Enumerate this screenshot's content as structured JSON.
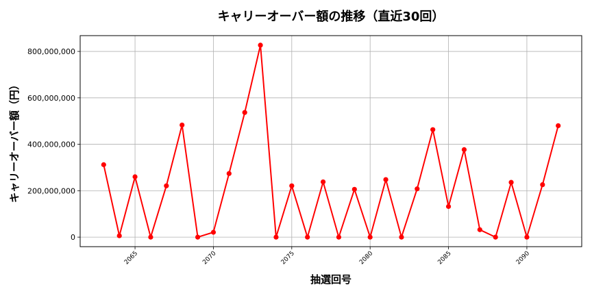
{
  "chart_data": {
    "type": "line",
    "title": "キャリーオーバー額の推移（直近30回）",
    "xlabel": "抽選回号",
    "ylabel": "キャリーオーバー額（円）",
    "x": [
      2063,
      2064,
      2065,
      2066,
      2067,
      2068,
      2069,
      2070,
      2071,
      2072,
      2073,
      2074,
      2075,
      2076,
      2077,
      2078,
      2079,
      2080,
      2081,
      2082,
      2083,
      2084,
      2085,
      2086,
      2087,
      2088,
      2089,
      2090,
      2091,
      2092
    ],
    "series": [
      {
        "name": "キャリーオーバー額",
        "color": "#ff0000",
        "marker": "circle",
        "values": [
          312000000,
          6000000,
          260000000,
          0,
          221000000,
          483000000,
          0,
          21000000,
          274000000,
          537000000,
          827000000,
          0,
          221000000,
          0,
          238000000,
          0,
          206000000,
          0,
          248000000,
          0,
          208000000,
          463000000,
          132000000,
          377000000,
          32000000,
          0,
          236000000,
          0,
          226000000,
          480000000
        ]
      }
    ],
    "xticks": [
      2065,
      2070,
      2075,
      2080,
      2085,
      2090
    ],
    "xtick_labels": [
      "2065",
      "2070",
      "2075",
      "2080",
      "2085",
      "2090"
    ],
    "yticks": [
      0,
      200000000,
      400000000,
      600000000,
      800000000
    ],
    "ytick_labels": [
      "0",
      "200,000,000",
      "400,000,000",
      "600,000,000",
      "800,000,000"
    ],
    "xlim": [
      2061.5,
      2093.5
    ],
    "ylim": [
      -41000000,
      868000000
    ],
    "grid": true,
    "legend": null
  }
}
